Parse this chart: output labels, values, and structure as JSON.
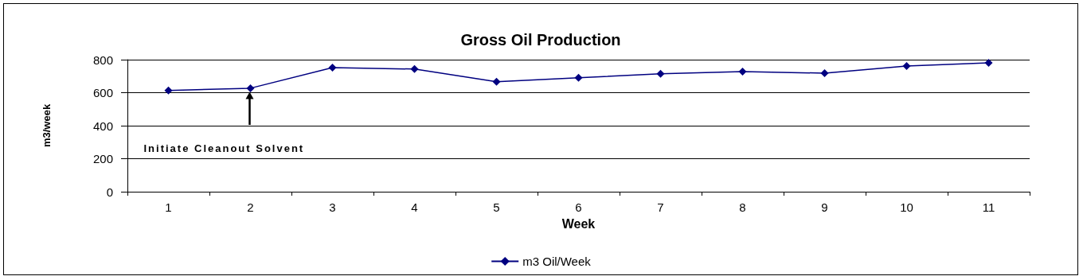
{
  "chart_data": {
    "type": "line",
    "title": "Gross Oil Production",
    "xlabel": "Week",
    "ylabel": "m3/week",
    "categories": [
      "1",
      "2",
      "3",
      "4",
      "5",
      "6",
      "7",
      "8",
      "9",
      "10",
      "11"
    ],
    "series": [
      {
        "name": "m3 Oil/Week",
        "color": "#000080",
        "values": [
          613,
          627,
          752,
          743,
          666,
          690,
          714,
          728,
          718,
          762,
          781
        ]
      }
    ],
    "ylim": [
      0,
      800
    ],
    "yticks": [
      0,
      200,
      400,
      600,
      800
    ],
    "grid": "y",
    "legend": "bottom",
    "marker": "diamond",
    "line_style": "solid",
    "annotations": [
      "Initiate Cleanout Solvent"
    ]
  }
}
